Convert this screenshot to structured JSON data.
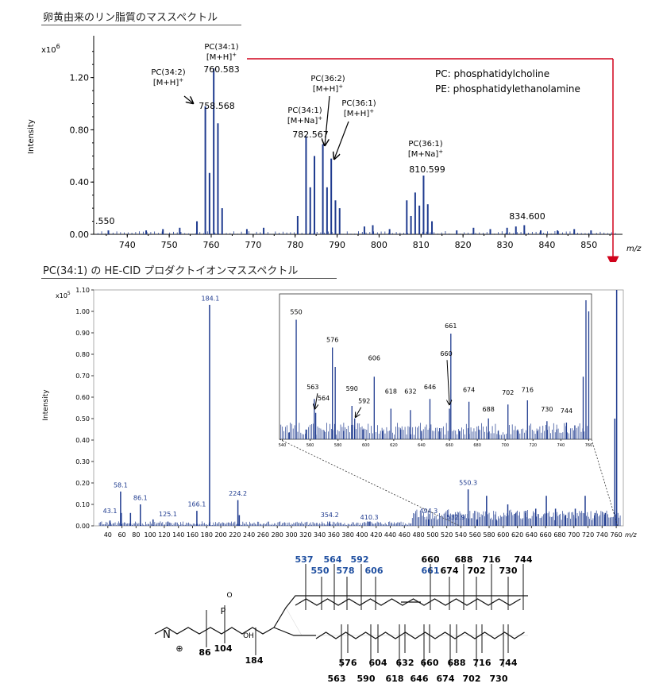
{
  "headings": {
    "top": "卵黄由来のリン脂質のマススペクトル",
    "middle": "PC(34:1) の HE-CID プロダクトイオンマススペクトル"
  },
  "chart_data": [
    {
      "type": "bar",
      "subtype": "mass-spectrum",
      "xlabel": "m/z",
      "ylabel": "Intensity",
      "y_multiplier": "x10",
      "y_multiplier_exp": "6",
      "xlim": [
        732,
        858
      ],
      "ylim": [
        0,
        1.52
      ],
      "xticks": [
        740,
        750,
        760,
        770,
        780,
        790,
        800,
        810,
        820,
        830,
        840,
        850
      ],
      "yticks": [
        0.0,
        0.4,
        0.8,
        1.2
      ],
      "ytick_labels": [
        "0.00",
        "0.40",
        "0.80",
        "1.20"
      ],
      "peaks": [
        {
          "x": 758.6,
          "y": 0.98
        },
        {
          "x": 759.6,
          "y": 0.47
        },
        {
          "x": 760.6,
          "y": 1.27
        },
        {
          "x": 761.6,
          "y": 0.85
        },
        {
          "x": 762.6,
          "y": 0.2
        },
        {
          "x": 756.6,
          "y": 0.1
        },
        {
          "x": 782.6,
          "y": 0.75
        },
        {
          "x": 783.6,
          "y": 0.36
        },
        {
          "x": 784.6,
          "y": 0.6
        },
        {
          "x": 786.6,
          "y": 0.69
        },
        {
          "x": 787.6,
          "y": 0.36
        },
        {
          "x": 788.6,
          "y": 0.58
        },
        {
          "x": 789.6,
          "y": 0.26
        },
        {
          "x": 790.6,
          "y": 0.2
        },
        {
          "x": 780.6,
          "y": 0.14
        },
        {
          "x": 806.6,
          "y": 0.26
        },
        {
          "x": 807.6,
          "y": 0.14
        },
        {
          "x": 808.6,
          "y": 0.32
        },
        {
          "x": 809.6,
          "y": 0.22
        },
        {
          "x": 810.6,
          "y": 0.45
        },
        {
          "x": 811.6,
          "y": 0.23
        },
        {
          "x": 812.6,
          "y": 0.1
        },
        {
          "x": 832.6,
          "y": 0.06
        },
        {
          "x": 834.6,
          "y": 0.07
        },
        {
          "x": 735.5,
          "y": 0.03
        },
        {
          "x": 744.5,
          "y": 0.03
        },
        {
          "x": 748.5,
          "y": 0.04
        },
        {
          "x": 752.5,
          "y": 0.05
        },
        {
          "x": 768.5,
          "y": 0.04
        },
        {
          "x": 772.5,
          "y": 0.05
        },
        {
          "x": 796.5,
          "y": 0.06
        },
        {
          "x": 798.5,
          "y": 0.07
        },
        {
          "x": 802.5,
          "y": 0.04
        },
        {
          "x": 818.5,
          "y": 0.03
        },
        {
          "x": 822.5,
          "y": 0.05
        },
        {
          "x": 826.5,
          "y": 0.04
        },
        {
          "x": 830.5,
          "y": 0.05
        },
        {
          "x": 838.5,
          "y": 0.03
        },
        {
          "x": 842.5,
          "y": 0.03
        },
        {
          "x": 846.5,
          "y": 0.04
        },
        {
          "x": 850.5,
          "y": 0.03
        }
      ],
      "labels": [
        {
          "text": "PC(34:2)",
          "x": 758.6
        },
        {
          "text": "[M+H]",
          "sup": "+",
          "x": 758.6
        },
        {
          "text": "758.568",
          "x": 758.6
        },
        {
          "text": "PC(34:1)",
          "x": 760.6
        },
        {
          "text": "[M+H]",
          "sup": "+",
          "x": 760.6
        },
        {
          "text": "760.583",
          "x": 760.6
        },
        {
          "text": "PC(36:2)",
          "x": 786.6
        },
        {
          "text": "[M+H]",
          "sup": "+",
          "x": 786.6
        },
        {
          "text": "PC(34:1)",
          "x": 782.6
        },
        {
          "text": "[M+Na]",
          "sup": "+",
          "x": 782.6
        },
        {
          "text": "782.567",
          "x": 782.6
        },
        {
          "text": "PC(36:1)",
          "x": 788.6
        },
        {
          "text": "[M+H]",
          "sup": "+",
          "x": 788.6
        },
        {
          "text": "PC(36:1)",
          "x": 810.6
        },
        {
          "text": "[M+Na]",
          "sup": "+",
          "x": 810.6
        },
        {
          "text": "810.599",
          "x": 810.6
        },
        {
          "text": "834.600",
          "x": 834.6
        },
        {
          "text": ".550",
          "x": 735
        }
      ],
      "legend": [
        "PC: phosphatidylcholine",
        "PE: phosphatidylethanolamine"
      ],
      "color": "#1f3b8f"
    },
    {
      "type": "bar",
      "subtype": "mass-spectrum",
      "xlabel": "m/z",
      "ylabel": "Intensity",
      "y_multiplier": "x10",
      "y_multiplier_exp": "5",
      "xlim": [
        20,
        770
      ],
      "ylim": [
        0,
        1.1
      ],
      "xticks": [
        40,
        60,
        80,
        100,
        120,
        140,
        160,
        180,
        200,
        220,
        240,
        260,
        280,
        300,
        320,
        340,
        360,
        380,
        400,
        420,
        440,
        460,
        480,
        500,
        520,
        540,
        560,
        580,
        600,
        620,
        640,
        660,
        680,
        700,
        720,
        740,
        760
      ],
      "yticks": [
        0,
        0.1,
        0.2,
        0.3,
        0.4,
        0.5,
        0.6,
        0.7,
        0.8,
        0.9,
        1.0,
        1.1
      ],
      "ytick_labels": [
        "0.00",
        "0.10",
        "0.20",
        "0.30",
        "0.40",
        "0.50",
        "0.60",
        "0.70",
        "0.80",
        "0.90",
        "1.00",
        "1.10"
      ],
      "peaks": [
        {
          "x": 43.1,
          "y": 0.025
        },
        {
          "x": 58.1,
          "y": 0.16
        },
        {
          "x": 59.1,
          "y": 0.06
        },
        {
          "x": 72.1,
          "y": 0.06
        },
        {
          "x": 86.1,
          "y": 0.1
        },
        {
          "x": 104.1,
          "y": 0.03
        },
        {
          "x": 125.1,
          "y": 0.02
        },
        {
          "x": 166.1,
          "y": 0.07
        },
        {
          "x": 184.1,
          "y": 1.03
        },
        {
          "x": 224.2,
          "y": 0.12
        },
        {
          "x": 226.2,
          "y": 0.05
        },
        {
          "x": 354.2,
          "y": 0.02
        },
        {
          "x": 410.3,
          "y": 0.02
        },
        {
          "x": 494.3,
          "y": 0.03
        },
        {
          "x": 550.3,
          "y": 0.17
        },
        {
          "x": 563,
          "y": 0.03
        },
        {
          "x": 576.4,
          "y": 0.14
        },
        {
          "x": 590,
          "y": 0.03
        },
        {
          "x": 606.4,
          "y": 0.1
        },
        {
          "x": 618,
          "y": 0.06
        },
        {
          "x": 632,
          "y": 0.07
        },
        {
          "x": 646,
          "y": 0.08
        },
        {
          "x": 661,
          "y": 0.14
        },
        {
          "x": 674,
          "y": 0.08
        },
        {
          "x": 688,
          "y": 0.05
        },
        {
          "x": 702,
          "y": 0.08
        },
        {
          "x": 716,
          "y": 0.14
        },
        {
          "x": 730,
          "y": 0.06
        },
        {
          "x": 744,
          "y": 0.04
        },
        {
          "x": 758,
          "y": 0.5
        },
        {
          "x": 760.6,
          "y": 1.1
        },
        {
          "x": 744.5,
          "y": 0.06
        }
      ],
      "labels": [
        {
          "text": "43.1",
          "x": 43.1
        },
        {
          "text": "58.1",
          "x": 58.1
        },
        {
          "text": "86.1",
          "x": 86.1
        },
        {
          "text": "125.1",
          "x": 125.1
        },
        {
          "text": "166.1",
          "x": 166.1
        },
        {
          "text": "184.1",
          "x": 184.1
        },
        {
          "text": "224.2",
          "x": 224.2
        },
        {
          "text": "354.2",
          "x": 354.2
        },
        {
          "text": "410.3",
          "x": 410.3
        },
        {
          "text": "494.3",
          "x": 494.3
        },
        {
          "text": "532.9",
          "x": 532.9
        },
        {
          "text": "550.3",
          "x": 550.3
        }
      ],
      "color": "#1f3b8f",
      "inset": {
        "xlim": [
          538,
          762
        ],
        "ylim": [
          0,
          1
        ],
        "xticks": [
          540,
          560,
          580,
          600,
          620,
          640,
          660,
          680,
          700,
          720,
          740,
          760
        ],
        "peaks": [
          {
            "x": 550,
            "y": 0.86
          },
          {
            "x": 563,
            "y": 0.29
          },
          {
            "x": 564,
            "y": 0.19
          },
          {
            "x": 576,
            "y": 0.66
          },
          {
            "x": 578,
            "y": 0.52
          },
          {
            "x": 590,
            "y": 0.24
          },
          {
            "x": 592,
            "y": 0.15
          },
          {
            "x": 606,
            "y": 0.45
          },
          {
            "x": 618,
            "y": 0.22
          },
          {
            "x": 632,
            "y": 0.21
          },
          {
            "x": 646,
            "y": 0.29
          },
          {
            "x": 660,
            "y": 0.22
          },
          {
            "x": 661,
            "y": 0.76
          },
          {
            "x": 674,
            "y": 0.27
          },
          {
            "x": 688,
            "y": 0.15
          },
          {
            "x": 702,
            "y": 0.25
          },
          {
            "x": 716,
            "y": 0.28
          },
          {
            "x": 730,
            "y": 0.13
          },
          {
            "x": 744,
            "y": 0.12
          },
          {
            "x": 756,
            "y": 0.45
          },
          {
            "x": 758,
            "y": 1.0
          },
          {
            "x": 760,
            "y": 0.92
          },
          {
            "x": 545,
            "y": 0.05
          },
          {
            "x": 557,
            "y": 0.07
          },
          {
            "x": 570,
            "y": 0.06
          },
          {
            "x": 584,
            "y": 0.06
          },
          {
            "x": 598,
            "y": 0.07
          },
          {
            "x": 612,
            "y": 0.06
          },
          {
            "x": 625,
            "y": 0.07
          },
          {
            "x": 640,
            "y": 0.06
          },
          {
            "x": 653,
            "y": 0.08
          },
          {
            "x": 667,
            "y": 0.06
          },
          {
            "x": 681,
            "y": 0.07
          },
          {
            "x": 695,
            "y": 0.06
          },
          {
            "x": 709,
            "y": 0.07
          },
          {
            "x": 723,
            "y": 0.06
          },
          {
            "x": 737,
            "y": 0.07
          },
          {
            "x": 750,
            "y": 0.1
          }
        ],
        "labels": [
          {
            "text": "550",
            "x": 550
          },
          {
            "text": "563",
            "x": 563
          },
          {
            "text": "564",
            "x": 564
          },
          {
            "text": "576",
            "x": 576
          },
          {
            "text": "590",
            "x": 590
          },
          {
            "text": "592",
            "x": 592
          },
          {
            "text": "606",
            "x": 606
          },
          {
            "text": "618",
            "x": 618
          },
          {
            "text": "632",
            "x": 632
          },
          {
            "text": "646",
            "x": 646
          },
          {
            "text": "660",
            "x": 660
          },
          {
            "text": "661",
            "x": 661
          },
          {
            "text": "674",
            "x": 674
          },
          {
            "text": "688",
            "x": 688
          },
          {
            "text": "702",
            "x": 702
          },
          {
            "text": "716",
            "x": 716
          },
          {
            "text": "730",
            "x": 730
          },
          {
            "text": "744",
            "x": 744
          }
        ]
      }
    }
  ],
  "structure": {
    "headgroup_labels": [
      "86",
      "104",
      "184"
    ],
    "upper_chain_labels_blue": [
      "537",
      "550",
      "564",
      "578",
      "592",
      "606"
    ],
    "upper_chain_labels_blue2": [
      "661"
    ],
    "upper_chain_labels_black": [
      "660",
      "674",
      "688",
      "702",
      "716",
      "730",
      "744"
    ],
    "lower_chain_labels_top": [
      "576",
      "604",
      "632",
      "660",
      "688",
      "716",
      "744"
    ],
    "lower_chain_labels_bottom": [
      "563",
      "590",
      "618",
      "646",
      "674",
      "702",
      "730"
    ],
    "atoms": {
      "N": "N",
      "plus": "⊕",
      "P": "P",
      "O": "O",
      "OH": "OH"
    }
  }
}
